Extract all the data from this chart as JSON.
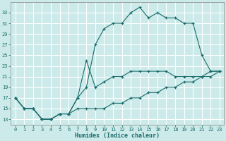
{
  "xlabel": "Humidex (Indice chaleur)",
  "bg_color": "#cceaea",
  "grid_color": "#ffffff",
  "line_color": "#1a6b6b",
  "line1_x": [
    0,
    1,
    2,
    3,
    4,
    5,
    6,
    7,
    8,
    9,
    10,
    11,
    12,
    13,
    14,
    15,
    16,
    17,
    18,
    19,
    20,
    21,
    22,
    23
  ],
  "line1_y": [
    17,
    15,
    15,
    13,
    13,
    14,
    14,
    17,
    19,
    27,
    30,
    31,
    31,
    33,
    34,
    32,
    33,
    32,
    32,
    31,
    31,
    25,
    22,
    22
  ],
  "line2_x": [
    0,
    1,
    2,
    3,
    4,
    5,
    6,
    7,
    8,
    9,
    10,
    11,
    12,
    13,
    14,
    15,
    16,
    17,
    18,
    19,
    20,
    21,
    22,
    23
  ],
  "line2_y": [
    17,
    15,
    15,
    13,
    13,
    14,
    14,
    17,
    24,
    19,
    20,
    21,
    21,
    22,
    22,
    22,
    22,
    22,
    21,
    21,
    21,
    21,
    22,
    22
  ],
  "line3_x": [
    0,
    1,
    2,
    3,
    4,
    5,
    6,
    7,
    8,
    9,
    10,
    11,
    12,
    13,
    14,
    15,
    16,
    17,
    18,
    19,
    20,
    21,
    22,
    23
  ],
  "line3_y": [
    17,
    15,
    15,
    13,
    13,
    14,
    14,
    15,
    15,
    15,
    15,
    16,
    16,
    17,
    17,
    18,
    18,
    19,
    19,
    20,
    20,
    21,
    21,
    22
  ],
  "xlim": [
    -0.5,
    23.5
  ],
  "ylim": [
    12,
    35
  ],
  "yticks": [
    13,
    15,
    17,
    19,
    21,
    23,
    25,
    27,
    29,
    31,
    33
  ],
  "xticks": [
    0,
    1,
    2,
    3,
    4,
    5,
    6,
    7,
    8,
    9,
    10,
    11,
    12,
    13,
    14,
    15,
    16,
    17,
    18,
    19,
    20,
    21,
    22,
    23
  ],
  "xlabel_fontsize": 6,
  "tick_fontsize": 5
}
